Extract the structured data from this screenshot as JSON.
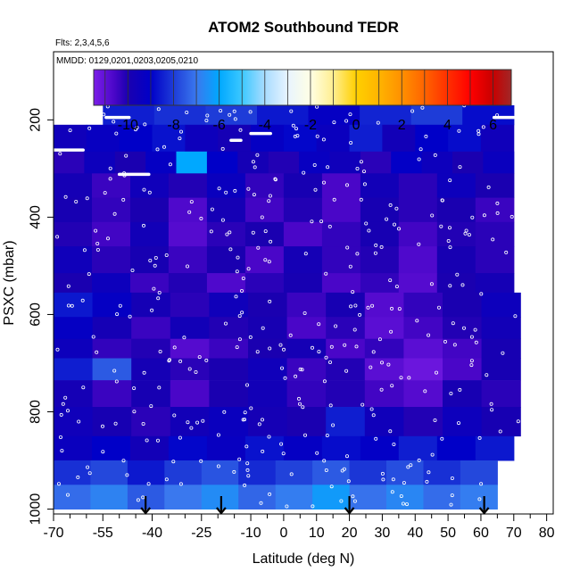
{
  "chart_data": {
    "type": "heatmap",
    "title": "ATOM2 Southbound TEDR",
    "flights_label": "Flts: 2,3,4,5,6",
    "dates_label": "MMDD: 0129,0201,0203,0205,0210",
    "xlabel": "Latitude (deg N)",
    "ylabel": "PSXC (mbar)",
    "xlim": [
      -70,
      82
    ],
    "ylim": [
      1010,
      60
    ],
    "y_reversed": true,
    "x_ticks": [
      -70,
      -55,
      -40,
      -25,
      -10,
      0,
      10,
      20,
      30,
      40,
      50,
      60,
      70,
      80
    ],
    "x_minor_ticks": [
      -65,
      -60,
      -50,
      -45,
      -35,
      -30,
      -20,
      -15,
      -5,
      5,
      15,
      25,
      35,
      45,
      55,
      65,
      75
    ],
    "y_ticks": [
      200,
      400,
      600,
      800,
      1000
    ],
    "colorbar": {
      "range": [
        -11.5,
        6.8
      ],
      "ticks": [
        -10,
        -8,
        -6,
        -4,
        -2,
        0,
        2,
        4,
        6
      ],
      "stops": [
        {
          "v": -11.5,
          "c": "#7b1ee8"
        },
        {
          "v": -10.6,
          "c": "#4a06c8"
        },
        {
          "v": -10.0,
          "c": "#1a00b0"
        },
        {
          "v": -9.0,
          "c": "#0000c8"
        },
        {
          "v": -8.0,
          "c": "#1e3cd8"
        },
        {
          "v": -7.0,
          "c": "#3a78ee"
        },
        {
          "v": -6.0,
          "c": "#00a8ff"
        },
        {
          "v": -5.0,
          "c": "#3cc8ff"
        },
        {
          "v": -4.0,
          "c": "#a8dcff"
        },
        {
          "v": -3.0,
          "c": "#e8f4ff"
        },
        {
          "v": -2.0,
          "c": "#ffffe4"
        },
        {
          "v": -1.0,
          "c": "#ffee90"
        },
        {
          "v": 0.0,
          "c": "#ffd000"
        },
        {
          "v": 1.0,
          "c": "#ffb400"
        },
        {
          "v": 2.0,
          "c": "#ff9000"
        },
        {
          "v": 3.0,
          "c": "#ff6400"
        },
        {
          "v": 4.0,
          "c": "#ff3000"
        },
        {
          "v": 5.0,
          "c": "#ff0000"
        },
        {
          "v": 6.0,
          "c": "#c80000"
        },
        {
          "v": 6.8,
          "c": "#a02828"
        }
      ]
    },
    "profile_latitudes": [
      -42,
      -19,
      20,
      61
    ],
    "layers": [
      {
        "p": [
          170,
          210
        ],
        "x": [
          -55,
          70
        ],
        "v": [
          -8.5,
          -8.2,
          -8.0,
          -8.6,
          -9.2,
          -8.4,
          -8.0,
          -8.8
        ]
      },
      {
        "p": [
          210,
          265
        ],
        "x": [
          -70,
          70
        ],
        "v": [
          -9.6,
          -9.3,
          -9.0,
          -8.7,
          -9.5,
          -9.8,
          -9.2,
          -8.9,
          -9.4,
          -8.5,
          -9.7,
          -9.0,
          -8.8,
          -9.6
        ]
      },
      {
        "p": [
          265,
          310
        ],
        "x": [
          -70,
          70
        ],
        "v": [
          -10.2,
          -9.5,
          -10.0,
          -9.2,
          -6.0,
          -9.0,
          -9.8,
          -10.1,
          -9.3,
          -9.6,
          -10.2,
          -9.1,
          -9.5,
          -10.0,
          -9.4
        ]
      },
      {
        "p": [
          310,
          360
        ],
        "x": [
          -70,
          70
        ],
        "v": [
          -9.8,
          -10.4,
          -9.6,
          -10.1,
          -9.4,
          -10.3,
          -9.9,
          -10.6,
          -9.7,
          -10.2,
          -9.5,
          -10.0
        ]
      },
      {
        "p": [
          360,
          410
        ],
        "x": [
          -70,
          70
        ],
        "v": [
          -9.9,
          -10.3,
          -10.0,
          -10.7,
          -9.8,
          -10.5,
          -10.1,
          -10.6,
          -9.9,
          -10.2,
          -10.0,
          -10.4
        ]
      },
      {
        "p": [
          410,
          460
        ],
        "x": [
          -70,
          70
        ],
        "v": [
          -10.1,
          -10.5,
          -9.7,
          -10.8,
          -10.2,
          -10.0,
          -10.6,
          -10.3,
          -9.9,
          -10.5,
          -10.1,
          -10.2
        ]
      },
      {
        "p": [
          460,
          515
        ],
        "x": [
          -70,
          70
        ],
        "v": [
          -9.6,
          -10.2,
          -9.9,
          -10.4,
          -10.0,
          -10.6,
          -9.8,
          -10.3,
          -10.1,
          -10.7,
          -9.9,
          -10.2
        ]
      },
      {
        "p": [
          515,
          555
        ],
        "x": [
          -70,
          70
        ],
        "v": [
          -10.0,
          -9.5,
          -10.4,
          -10.1,
          -10.7,
          -10.2,
          -9.9,
          -10.6,
          -10.3,
          -10.8,
          -10.0,
          -9.8
        ]
      },
      {
        "p": [
          555,
          605
        ],
        "x": [
          -70,
          72
        ],
        "v": [
          -8.6,
          -9.2,
          -9.8,
          -10.2,
          -9.6,
          -10.0,
          -10.4,
          -9.9,
          -10.8,
          -10.3,
          -10.0,
          -9.5
        ]
      },
      {
        "p": [
          605,
          650
        ],
        "x": [
          -70,
          72
        ],
        "v": [
          -9.2,
          -9.8,
          -10.4,
          -9.7,
          -10.1,
          -9.9,
          -10.6,
          -10.2,
          -10.9,
          -10.5,
          -10.1,
          -9.7
        ]
      },
      {
        "p": [
          650,
          690
        ],
        "x": [
          -70,
          72
        ],
        "v": [
          -9.5,
          -10.3,
          -10.1,
          -10.8,
          -10.4,
          -10.0,
          -9.8,
          -10.6,
          -10.3,
          -10.9,
          -10.5,
          -9.9
        ]
      },
      {
        "p": [
          690,
          735
        ],
        "x": [
          -70,
          72
        ],
        "v": [
          -8.5,
          -7.5,
          -9.8,
          -10.2,
          -10.0,
          -9.6,
          -10.4,
          -10.1,
          -10.9,
          -11.2,
          -10.6,
          -9.9
        ]
      },
      {
        "p": [
          735,
          790
        ],
        "x": [
          -70,
          72
        ],
        "v": [
          -9.8,
          -10.4,
          -9.9,
          -10.6,
          -10.0,
          -9.7,
          -10.3,
          -10.1,
          -10.5,
          -10.8,
          -9.9,
          -10.2
        ]
      },
      {
        "p": [
          790,
          850
        ],
        "x": [
          -70,
          72
        ],
        "v": [
          -9.6,
          -9.9,
          -10.2,
          -9.7,
          -9.4,
          -9.8,
          -10.0,
          -8.5,
          -9.6,
          -10.1,
          -9.5,
          -9.9
        ]
      },
      {
        "p": [
          850,
          900
        ],
        "x": [
          -70,
          70
        ],
        "v": [
          -9.4,
          -9.0,
          -9.7,
          -8.9,
          -9.3,
          -8.7,
          -9.2,
          -8.8,
          -9.1,
          -8.5,
          -9.0,
          -8.6
        ]
      },
      {
        "p": [
          900,
          950
        ],
        "x": [
          -70,
          65
        ],
        "v": [
          -8.2,
          -7.8,
          -8.6,
          -8.0,
          -7.6,
          -8.3,
          -7.9,
          -7.5,
          -8.1,
          -7.7,
          -8.2,
          -7.8
        ]
      },
      {
        "p": [
          950,
          1000
        ],
        "x": [
          -70,
          65
        ],
        "v": [
          -7.2,
          -6.8,
          -7.5,
          -7.0,
          -6.6,
          -7.3,
          -6.9,
          -6.3,
          -7.1,
          -6.7,
          -7.2,
          -6.9
        ]
      }
    ]
  }
}
